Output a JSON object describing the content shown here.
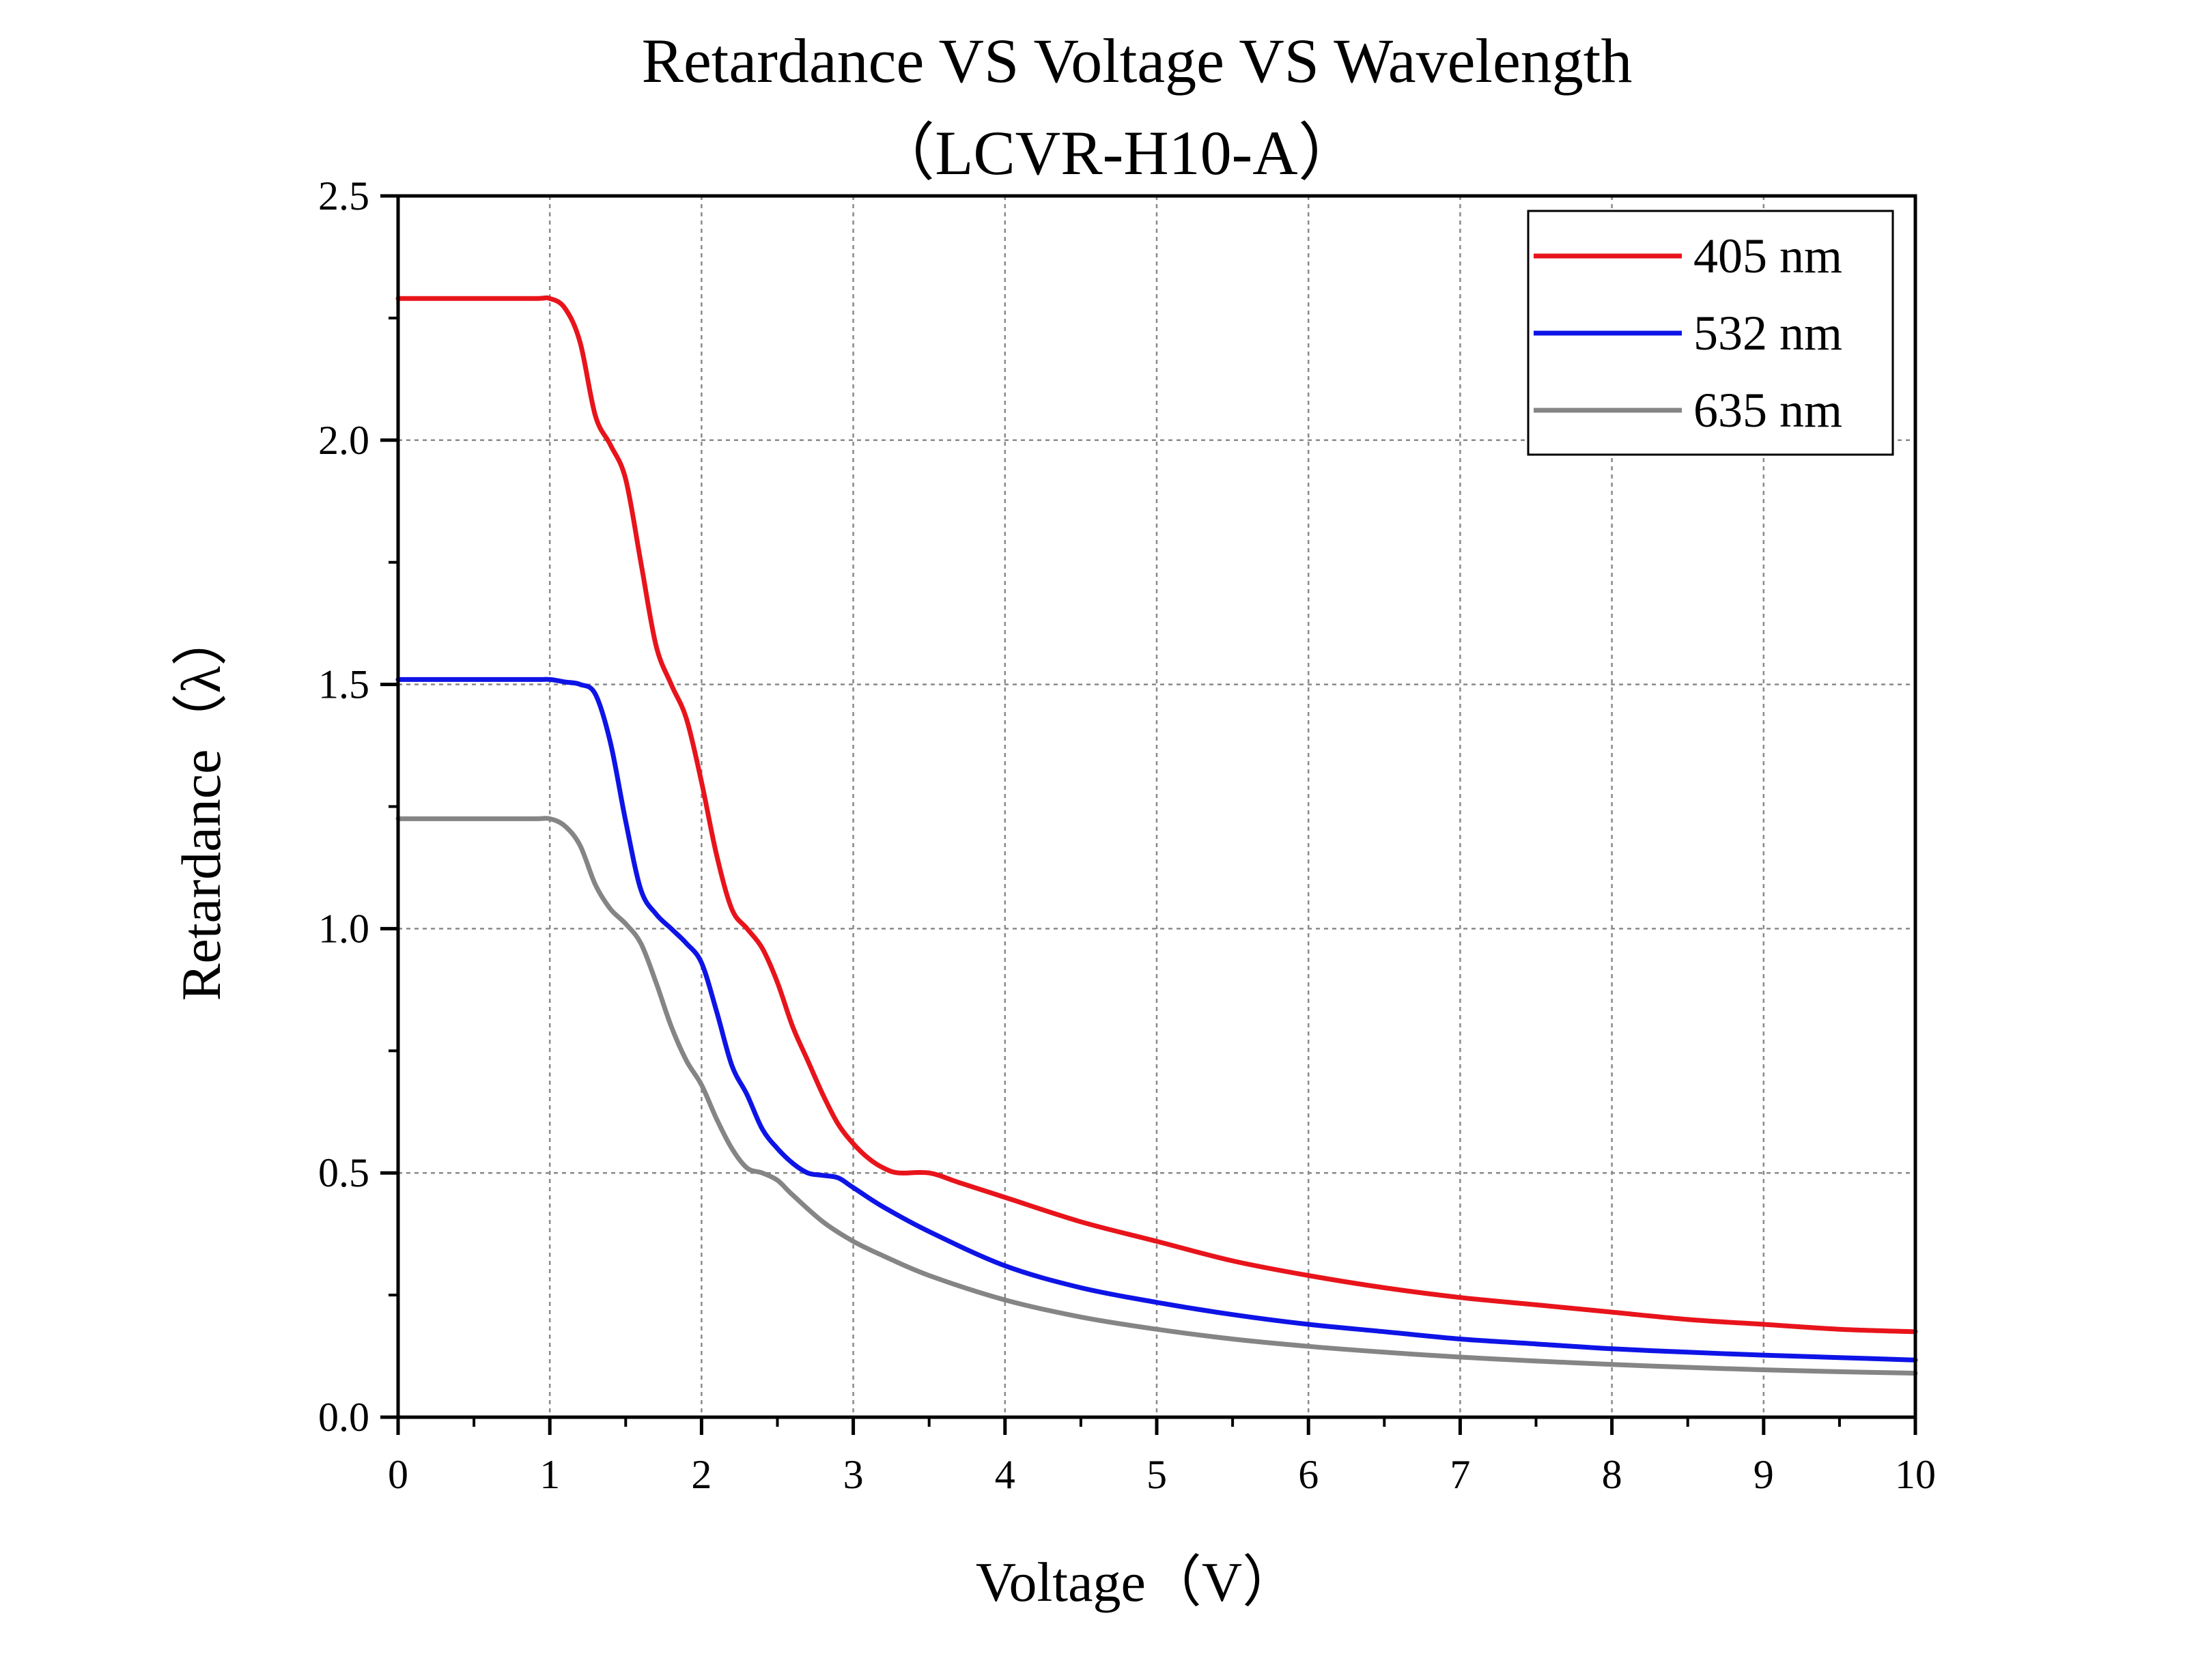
{
  "chart_data": {
    "type": "line",
    "title": "Retardance VS Voltage VS Wavelength",
    "subtitle": "（LCVR-H10-A）",
    "xlabel": "Voltage（V）",
    "ylabel": "Retardance（λ）",
    "xlim": [
      0,
      10
    ],
    "ylim": [
      0,
      2.5
    ],
    "xticks": [
      "0",
      "1",
      "2",
      "3",
      "4",
      "5",
      "6",
      "7",
      "8",
      "9",
      "10"
    ],
    "yticks": [
      "0.0",
      "0.5",
      "1.0",
      "1.5",
      "2.0",
      "2.5"
    ],
    "grid": true,
    "legend_position": "top-right",
    "series": [
      {
        "name": "405 nm",
        "color": "#e8141b",
        "points": [
          [
            0,
            2.29
          ],
          [
            0.5,
            2.29
          ],
          [
            0.9,
            2.29
          ],
          [
            1.0,
            2.29
          ],
          [
            1.1,
            2.27
          ],
          [
            1.2,
            2.2
          ],
          [
            1.3,
            2.05
          ],
          [
            1.4,
            1.99
          ],
          [
            1.5,
            1.92
          ],
          [
            1.6,
            1.75
          ],
          [
            1.7,
            1.58
          ],
          [
            1.8,
            1.5
          ],
          [
            1.9,
            1.43
          ],
          [
            2.0,
            1.3
          ],
          [
            2.1,
            1.15
          ],
          [
            2.2,
            1.04
          ],
          [
            2.3,
            1.0
          ],
          [
            2.4,
            0.96
          ],
          [
            2.5,
            0.89
          ],
          [
            2.6,
            0.8
          ],
          [
            2.7,
            0.73
          ],
          [
            2.8,
            0.66
          ],
          [
            2.9,
            0.6
          ],
          [
            3.0,
            0.56
          ],
          [
            3.1,
            0.53
          ],
          [
            3.2,
            0.51
          ],
          [
            3.3,
            0.5
          ],
          [
            3.5,
            0.5
          ],
          [
            3.7,
            0.48
          ],
          [
            4.0,
            0.45
          ],
          [
            4.5,
            0.4
          ],
          [
            5.0,
            0.36
          ],
          [
            5.5,
            0.32
          ],
          [
            6.0,
            0.29
          ],
          [
            6.5,
            0.265
          ],
          [
            7.0,
            0.245
          ],
          [
            7.5,
            0.23
          ],
          [
            8.0,
            0.215
          ],
          [
            8.5,
            0.2
          ],
          [
            9.0,
            0.19
          ],
          [
            9.5,
            0.18
          ],
          [
            10.0,
            0.175
          ]
        ]
      },
      {
        "name": "532 nm",
        "color": "#0e14e6",
        "points": [
          [
            0,
            1.51
          ],
          [
            0.5,
            1.51
          ],
          [
            0.9,
            1.51
          ],
          [
            1.0,
            1.51
          ],
          [
            1.1,
            1.505
          ],
          [
            1.2,
            1.5
          ],
          [
            1.3,
            1.48
          ],
          [
            1.4,
            1.38
          ],
          [
            1.5,
            1.22
          ],
          [
            1.6,
            1.08
          ],
          [
            1.7,
            1.03
          ],
          [
            1.8,
            1.0
          ],
          [
            1.9,
            0.97
          ],
          [
            2.0,
            0.93
          ],
          [
            2.1,
            0.83
          ],
          [
            2.2,
            0.72
          ],
          [
            2.3,
            0.66
          ],
          [
            2.4,
            0.59
          ],
          [
            2.5,
            0.55
          ],
          [
            2.6,
            0.52
          ],
          [
            2.7,
            0.5
          ],
          [
            2.8,
            0.495
          ],
          [
            2.9,
            0.49
          ],
          [
            3.0,
            0.47
          ],
          [
            3.2,
            0.43
          ],
          [
            3.5,
            0.38
          ],
          [
            4.0,
            0.31
          ],
          [
            4.5,
            0.265
          ],
          [
            5.0,
            0.235
          ],
          [
            5.5,
            0.21
          ],
          [
            6.0,
            0.19
          ],
          [
            6.5,
            0.175
          ],
          [
            7.0,
            0.16
          ],
          [
            7.5,
            0.15
          ],
          [
            8.0,
            0.14
          ],
          [
            8.5,
            0.133
          ],
          [
            9.0,
            0.127
          ],
          [
            9.5,
            0.122
          ],
          [
            10.0,
            0.117
          ]
        ]
      },
      {
        "name": "635 nm",
        "color": "#858585",
        "points": [
          [
            0,
            1.225
          ],
          [
            0.5,
            1.225
          ],
          [
            0.9,
            1.225
          ],
          [
            1.0,
            1.225
          ],
          [
            1.1,
            1.21
          ],
          [
            1.2,
            1.17
          ],
          [
            1.3,
            1.09
          ],
          [
            1.4,
            1.04
          ],
          [
            1.5,
            1.01
          ],
          [
            1.6,
            0.97
          ],
          [
            1.7,
            0.89
          ],
          [
            1.8,
            0.8
          ],
          [
            1.9,
            0.73
          ],
          [
            2.0,
            0.68
          ],
          [
            2.1,
            0.61
          ],
          [
            2.2,
            0.55
          ],
          [
            2.3,
            0.51
          ],
          [
            2.4,
            0.5
          ],
          [
            2.5,
            0.485
          ],
          [
            2.6,
            0.455
          ],
          [
            2.8,
            0.4
          ],
          [
            3.0,
            0.36
          ],
          [
            3.2,
            0.33
          ],
          [
            3.5,
            0.29
          ],
          [
            4.0,
            0.24
          ],
          [
            4.5,
            0.205
          ],
          [
            5.0,
            0.18
          ],
          [
            5.5,
            0.16
          ],
          [
            6.0,
            0.145
          ],
          [
            6.5,
            0.133
          ],
          [
            7.0,
            0.123
          ],
          [
            7.5,
            0.115
          ],
          [
            8.0,
            0.108
          ],
          [
            8.5,
            0.102
          ],
          [
            9.0,
            0.097
          ],
          [
            9.5,
            0.093
          ],
          [
            10.0,
            0.09
          ]
        ]
      }
    ]
  }
}
